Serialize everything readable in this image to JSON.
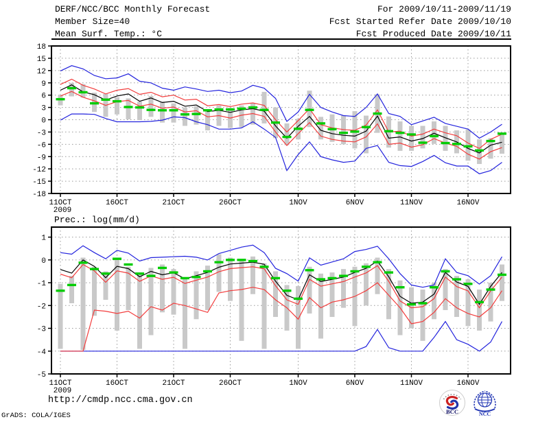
{
  "header": {
    "title": "DERF/NCC/BCC Monthly Forecast",
    "member_size": "Member Size=40",
    "chart1_title": "Mean Surf. Temp.: °C",
    "for_range": "For 2009/10/11-2009/11/19",
    "fcst_refer": "Fcst Started Refer Date 2009/10/10",
    "fcst_produced": "Fcst Produced Date 2009/10/11"
  },
  "footer": {
    "url": "http://cmdp.ncc.cma.gov.cn",
    "credit": "GrADS: COLA/IGES",
    "bcc_label": "BCC",
    "ncc_label": "NCC"
  },
  "colors": {
    "blue": "#2222dd",
    "red": "#f23c3c",
    "black": "#000000",
    "green": "#00cc00",
    "bar": "#c9c9c9",
    "grid": "#999999"
  },
  "chart_data": [
    {
      "type": "line",
      "title": "Mean Surf. Temp.: °C",
      "ylabel": "°C",
      "ylim": [
        -18,
        18
      ],
      "yticks": [
        18,
        15,
        12,
        9,
        6,
        3,
        0,
        -3,
        -6,
        -9,
        -12,
        -15,
        -18
      ],
      "grid": true,
      "x_start_date": "2009/10/11",
      "x_tick_labels": [
        "11OCT",
        "16OCT",
        "21OCT",
        "26OCT",
        "1NOV",
        "6NOV",
        "11NOV",
        "16NOV"
      ],
      "x_tick_days": [
        0,
        5,
        10,
        15,
        21,
        26,
        31,
        36
      ],
      "x_sub_label": "2009",
      "n_days": 40,
      "series": [
        {
          "name": "ensemble-max",
          "color": "blue",
          "values": [
            11.9,
            13.2,
            12.4,
            10.8,
            10.0,
            10.2,
            11.2,
            9.4,
            9.0,
            7.7,
            7.2,
            8.0,
            7.5,
            6.9,
            7.2,
            6.6,
            7.0,
            8.4,
            7.7,
            5.2,
            -0.4,
            1.9,
            6.2,
            3.0,
            1.9,
            1.0,
            0.8,
            3.0,
            6.3,
            1.5,
            0.8,
            -1.2,
            -0.3,
            0.6,
            -0.9,
            -1.6,
            -2.3,
            -4.5,
            -3.0,
            -1.1
          ]
        },
        {
          "name": "ensemble-min",
          "color": "blue",
          "values": [
            -0.1,
            1.4,
            1.4,
            1.3,
            0.3,
            -0.5,
            -0.5,
            -0.5,
            -0.4,
            -0.1,
            0.7,
            0.5,
            -0.5,
            -1.2,
            -2.3,
            -2.3,
            -2.0,
            -0.5,
            -2.3,
            -4.3,
            -12.4,
            -8.5,
            -5.4,
            -9.0,
            -9.8,
            -10.4,
            -10.1,
            -7.0,
            -6.3,
            -10.4,
            -11.2,
            -11.4,
            -10.2,
            -8.7,
            -10.5,
            -11.3,
            -11.3,
            -13.2,
            -12.4,
            -10.4
          ]
        },
        {
          "name": "spread-upper",
          "color": "red",
          "values": [
            8.6,
            9.9,
            8.4,
            7.5,
            6.3,
            7.2,
            7.6,
            6.2,
            6.7,
            5.6,
            6.0,
            4.8,
            5.0,
            3.4,
            3.7,
            3.2,
            3.8,
            4.1,
            3.5,
            0.0,
            -3.0,
            -0.2,
            2.7,
            -1.2,
            -2.0,
            -2.4,
            -2.6,
            -1.3,
            2.4,
            -3.0,
            -2.8,
            -4.0,
            -3.5,
            -2.3,
            -3.2,
            -3.9,
            -5.7,
            -7.0,
            -4.8,
            -3.5
          ]
        },
        {
          "name": "spread-lower",
          "color": "red",
          "values": [
            5.8,
            6.9,
            5.5,
            4.6,
            3.5,
            4.4,
            4.7,
            3.3,
            3.8,
            2.8,
            3.1,
            1.9,
            2.2,
            0.7,
            1.0,
            0.4,
            1.1,
            1.5,
            0.8,
            -3.0,
            -6.3,
            -3.4,
            -0.7,
            -4.0,
            -4.8,
            -5.2,
            -5.4,
            -4.2,
            -1.0,
            -6.0,
            -5.7,
            -6.7,
            -6.1,
            -4.6,
            -5.7,
            -6.5,
            -8.4,
            -9.6,
            -7.8,
            -6.8
          ]
        },
        {
          "name": "ensemble-mean",
          "color": "black",
          "values": [
            7.2,
            8.5,
            6.8,
            6.1,
            4.8,
            5.8,
            6.3,
            4.5,
            5.3,
            4.2,
            4.5,
            3.3,
            3.6,
            2.0,
            2.3,
            1.8,
            2.4,
            2.7,
            2.1,
            -1.5,
            -4.5,
            -1.6,
            0.8,
            -2.6,
            -3.4,
            -3.8,
            -4.0,
            -2.8,
            0.9,
            -4.5,
            -4.2,
            -5.2,
            -4.6,
            -3.3,
            -4.4,
            -5.4,
            -7.0,
            -8.1,
            -6.2,
            -5.5
          ]
        }
      ],
      "observation_dashes": {
        "name": "observation",
        "color": "green",
        "values": [
          5.0,
          7.7,
          6.7,
          4.0,
          4.9,
          4.5,
          3.1,
          3.0,
          2.4,
          2.3,
          2.3,
          1.3,
          1.4,
          2.3,
          2.5,
          2.5,
          2.7,
          3.0,
          2.4,
          -0.7,
          -4.2,
          -2.2,
          2.4,
          -0.9,
          -2.3,
          -3.2,
          -2.9,
          -1.8,
          1.5,
          -2.8,
          -3.2,
          -3.6,
          -5.6,
          -4.0,
          -5.7,
          -5.9,
          -6.5,
          -7.5,
          -5.2,
          -3.4
        ]
      },
      "bars": {
        "name": "member-spread-bar",
        "color": "bar",
        "ranges": [
          [
            3.5,
            6.0
          ],
          [
            5.7,
            9.0
          ],
          [
            5.4,
            8.7
          ],
          [
            1.9,
            6.6
          ],
          [
            0.7,
            6.3
          ],
          [
            1.3,
            5.5
          ],
          [
            0.1,
            5.2
          ],
          [
            -0.1,
            4.4
          ],
          [
            0.7,
            5.8
          ],
          [
            -0.7,
            4.4
          ],
          [
            -0.7,
            4.0
          ],
          [
            -1.5,
            3.0
          ],
          [
            -1.2,
            3.3
          ],
          [
            -2.6,
            2.4
          ],
          [
            -1.5,
            3.5
          ],
          [
            -2.0,
            2.9
          ],
          [
            -1.8,
            3.5
          ],
          [
            -1.2,
            4.1
          ],
          [
            -0.9,
            6.8
          ],
          [
            -4.5,
            3.0
          ],
          [
            -6.2,
            -0.9
          ],
          [
            -4.8,
            0.2
          ],
          [
            -1.8,
            7.1
          ],
          [
            -4.8,
            0.7
          ],
          [
            -5.4,
            1.3
          ],
          [
            -6.0,
            1.0
          ],
          [
            -7.0,
            2.1
          ],
          [
            -8.2,
            1.0
          ],
          [
            -3.2,
            6.2
          ],
          [
            -6.8,
            0.8
          ],
          [
            -7.6,
            -0.4
          ],
          [
            -7.6,
            -1.5
          ],
          [
            -7.0,
            -1.5
          ],
          [
            -5.9,
            -0.4
          ],
          [
            -7.6,
            -1.5
          ],
          [
            -8.2,
            -2.6
          ],
          [
            -10.0,
            -2.4
          ],
          [
            -10.8,
            -4.8
          ],
          [
            -9.5,
            -4.5
          ],
          [
            -8.3,
            -3.5
          ]
        ]
      }
    },
    {
      "type": "line",
      "title": "Prec.: log(mm/d)",
      "ylabel": "log(mm/d)",
      "ylim": [
        -5,
        1
      ],
      "yticks": [
        1,
        0,
        -1,
        -2,
        -3,
        -4,
        -5
      ],
      "grid": true,
      "x_start_date": "2009/10/11",
      "x_tick_labels": [
        "11OCT",
        "16OCT",
        "21OCT",
        "26OCT",
        "1NOV",
        "6NOV",
        "11NOV",
        "16NOV"
      ],
      "x_tick_days": [
        0,
        5,
        10,
        15,
        21,
        26,
        31,
        36
      ],
      "x_sub_label": "2009",
      "n_days": 40,
      "series": [
        {
          "name": "ensemble-max",
          "color": "blue",
          "values": [
            0.32,
            0.25,
            0.62,
            0.32,
            0.05,
            0.42,
            0.3,
            -0.05,
            0.1,
            0.12,
            0.14,
            0.16,
            0.12,
            0.0,
            0.28,
            0.42,
            0.56,
            0.65,
            0.32,
            -0.37,
            -0.6,
            -0.93,
            0.09,
            -0.23,
            -0.09,
            0.05,
            0.37,
            0.46,
            0.6,
            0.05,
            -0.6,
            -1.1,
            -1.2,
            -1.1,
            0.05,
            -0.55,
            -0.69,
            -1.06,
            -0.69,
            0.14
          ]
        },
        {
          "name": "ensemble-min",
          "color": "blue",
          "values": [
            -4,
            -4,
            -4,
            -4,
            -4,
            -4,
            -4,
            -4,
            -4,
            -4,
            -4,
            -4,
            -4,
            -4,
            -4,
            -4,
            -4,
            -4,
            -4,
            -4,
            -4,
            -4,
            -4,
            -4,
            -4,
            -4,
            -4,
            -3.8,
            -3.05,
            -3.85,
            -4,
            -4,
            -4,
            -3.4,
            -2.7,
            -3.5,
            -3.7,
            -4.0,
            -3.6,
            -2.7
          ]
        },
        {
          "name": "spread-upper",
          "color": "red",
          "values": [
            -0.62,
            -0.78,
            -0.2,
            -0.48,
            -0.98,
            -0.48,
            -0.58,
            -0.94,
            -0.7,
            -0.85,
            -0.76,
            -1.03,
            -0.89,
            -0.75,
            -0.52,
            -0.38,
            -0.34,
            -0.3,
            -0.39,
            -1.13,
            -1.75,
            -1.95,
            -0.85,
            -1.15,
            -1.05,
            -0.95,
            -0.75,
            -0.57,
            -0.25,
            -0.94,
            -1.8,
            -2.1,
            -2.05,
            -1.7,
            -0.75,
            -1.17,
            -1.36,
            -2.1,
            -1.36,
            -0.75
          ]
        },
        {
          "name": "spread-lower",
          "color": "red",
          "values": [
            -4.0,
            -4.0,
            -4.0,
            -2.2,
            -2.25,
            -2.35,
            -2.25,
            -2.55,
            -2.05,
            -2.2,
            -1.9,
            -2.0,
            -2.15,
            -2.3,
            -1.45,
            -1.35,
            -1.3,
            -1.2,
            -1.3,
            -1.75,
            -2.1,
            -2.6,
            -1.65,
            -2.1,
            -1.85,
            -1.75,
            -1.6,
            -1.35,
            -1.0,
            -1.55,
            -2.1,
            -2.8,
            -2.7,
            -2.3,
            -1.7,
            -2.1,
            -2.35,
            -2.5,
            -2.1,
            -1.35
          ]
        },
        {
          "name": "ensemble-mean",
          "color": "black",
          "values": [
            -0.42,
            -0.58,
            0.0,
            -0.28,
            -0.78,
            -0.28,
            -0.38,
            -0.74,
            -0.5,
            -0.65,
            -0.56,
            -0.83,
            -0.69,
            -0.55,
            -0.32,
            -0.18,
            -0.14,
            -0.1,
            -0.19,
            -0.93,
            -1.55,
            -1.75,
            -0.65,
            -0.95,
            -0.85,
            -0.75,
            -0.55,
            -0.37,
            -0.05,
            -0.74,
            -1.6,
            -1.9,
            -1.85,
            -1.5,
            -0.55,
            -0.97,
            -1.16,
            -1.95,
            -1.16,
            -0.55
          ]
        }
      ],
      "observation_dashes": {
        "name": "observation",
        "color": "green",
        "values": [
          -1.35,
          -1.1,
          -0.12,
          -0.4,
          -0.6,
          0.05,
          -0.2,
          -0.6,
          -0.7,
          -0.35,
          -0.55,
          -0.8,
          -0.75,
          -0.5,
          -0.1,
          0.0,
          0.0,
          -0.05,
          -0.3,
          -0.8,
          -1.35,
          -1.7,
          -0.45,
          -0.85,
          -0.8,
          -0.7,
          -0.5,
          -0.3,
          -0.1,
          -0.55,
          -1.2,
          -1.95,
          -1.9,
          -1.2,
          -0.5,
          -0.85,
          -1.05,
          -1.85,
          -1.3,
          -0.65
        ]
      },
      "bars": {
        "name": "member-spread-bar",
        "color": "bar",
        "ranges": [
          [
            -3.9,
            -1.05
          ],
          [
            -1.9,
            -0.7
          ],
          [
            -3.95,
            0.1
          ],
          [
            -2.45,
            -0.3
          ],
          [
            -1.75,
            -0.5
          ],
          [
            -3.1,
            0.0
          ],
          [
            -2.2,
            -0.3
          ],
          [
            -3.9,
            -0.6
          ],
          [
            -3.3,
            -0.35
          ],
          [
            -2.3,
            -0.2
          ],
          [
            -2.4,
            -0.4
          ],
          [
            -3.9,
            -0.8
          ],
          [
            -2.6,
            -0.5
          ],
          [
            -2.2,
            -0.25
          ],
          [
            -1.4,
            0.25
          ],
          [
            -1.8,
            0.1
          ],
          [
            -3.55,
            0.0
          ],
          [
            -1.5,
            0.15
          ],
          [
            -3.9,
            -0.15
          ],
          [
            -2.5,
            -0.5
          ],
          [
            -3.1,
            -1.1
          ],
          [
            -3.9,
            -1.15
          ],
          [
            -2.35,
            -0.3
          ],
          [
            -3.45,
            -0.6
          ],
          [
            -2.5,
            -0.55
          ],
          [
            -2.1,
            -0.4
          ],
          [
            -2.9,
            -0.3
          ],
          [
            -2.0,
            -0.15
          ],
          [
            -1.5,
            0.1
          ],
          [
            -2.6,
            -0.4
          ],
          [
            -3.3,
            -0.9
          ],
          [
            -3.0,
            -1.2
          ],
          [
            -3.55,
            -1.3
          ],
          [
            -2.6,
            -1.0
          ],
          [
            -2.2,
            -0.4
          ],
          [
            -2.5,
            -0.7
          ],
          [
            -2.9,
            -0.85
          ],
          [
            -3.1,
            -1.3
          ],
          [
            -2.7,
            -1.0
          ],
          [
            -1.8,
            -0.2
          ]
        ]
      }
    }
  ]
}
